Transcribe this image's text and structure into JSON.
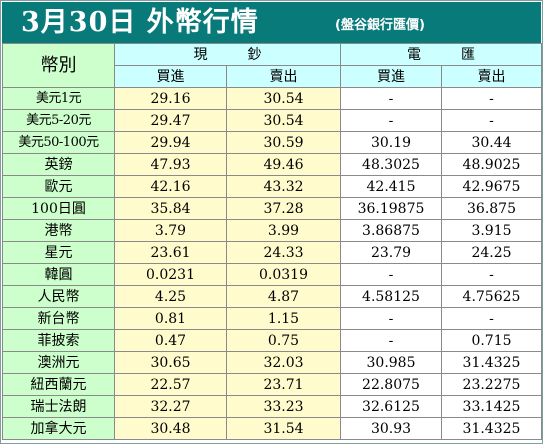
{
  "title": {
    "main": "3月30日 外幣行情",
    "source": "(盤谷銀行匯價)"
  },
  "header": {
    "currency_label": "幣別",
    "cash_label": "現鈔",
    "wire_label": "電匯",
    "buy_label": "買進",
    "sell_label": "賣出"
  },
  "rows": [
    {
      "currency": "美元1元",
      "cash_buy": "29.16",
      "cash_sell": "30.54",
      "wire_buy": "-",
      "wire_sell": "-"
    },
    {
      "currency": "美元5-20元",
      "cash_buy": "29.47",
      "cash_sell": "30.54",
      "wire_buy": "-",
      "wire_sell": "-"
    },
    {
      "currency": "美元50-100元",
      "cash_buy": "29.94",
      "cash_sell": "30.59",
      "wire_buy": "30.19",
      "wire_sell": "30.44"
    },
    {
      "currency": "英鎊",
      "cash_buy": "47.93",
      "cash_sell": "49.46",
      "wire_buy": "48.3025",
      "wire_sell": "48.9025"
    },
    {
      "currency": "歐元",
      "cash_buy": "42.16",
      "cash_sell": "43.32",
      "wire_buy": "42.415",
      "wire_sell": "42.9675"
    },
    {
      "currency": "100日圓",
      "cash_buy": "35.84",
      "cash_sell": "37.28",
      "wire_buy": "36.19875",
      "wire_sell": "36.875"
    },
    {
      "currency": "港幣",
      "cash_buy": "3.79",
      "cash_sell": "3.99",
      "wire_buy": "3.86875",
      "wire_sell": "3.915"
    },
    {
      "currency": "星元",
      "cash_buy": "23.61",
      "cash_sell": "24.33",
      "wire_buy": "23.79",
      "wire_sell": "24.25"
    },
    {
      "currency": "韓圓",
      "cash_buy": "0.0231",
      "cash_sell": "0.0319",
      "wire_buy": "-",
      "wire_sell": "-"
    },
    {
      "currency": "人民幣",
      "cash_buy": "4.25",
      "cash_sell": "4.87",
      "wire_buy": "4.58125",
      "wire_sell": "4.75625"
    },
    {
      "currency": "新台幣",
      "cash_buy": "0.81",
      "cash_sell": "1.15",
      "wire_buy": "-",
      "wire_sell": "-"
    },
    {
      "currency": "菲披索",
      "cash_buy": "0.47",
      "cash_sell": "0.75",
      "wire_buy": "-",
      "wire_sell": "0.715"
    },
    {
      "currency": "澳洲元",
      "cash_buy": "30.65",
      "cash_sell": "32.03",
      "wire_buy": "30.985",
      "wire_sell": "31.4325"
    },
    {
      "currency": "紐西蘭元",
      "cash_buy": "22.57",
      "cash_sell": "23.71",
      "wire_buy": "22.8075",
      "wire_sell": "23.2275"
    },
    {
      "currency": "瑞士法朗",
      "cash_buy": "32.27",
      "cash_sell": "33.23",
      "wire_buy": "32.6125",
      "wire_sell": "33.1425"
    },
    {
      "currency": "加拿大元",
      "cash_buy": "30.48",
      "cash_sell": "31.54",
      "wire_buy": "30.93",
      "wire_sell": "31.4325"
    }
  ],
  "colors": {
    "title_bg": "#087a79",
    "label_bg": "#ccffcc",
    "cash_bg": "#fffbcc",
    "header_bg": "#ccffff",
    "wire_bg": "#ffffff"
  }
}
